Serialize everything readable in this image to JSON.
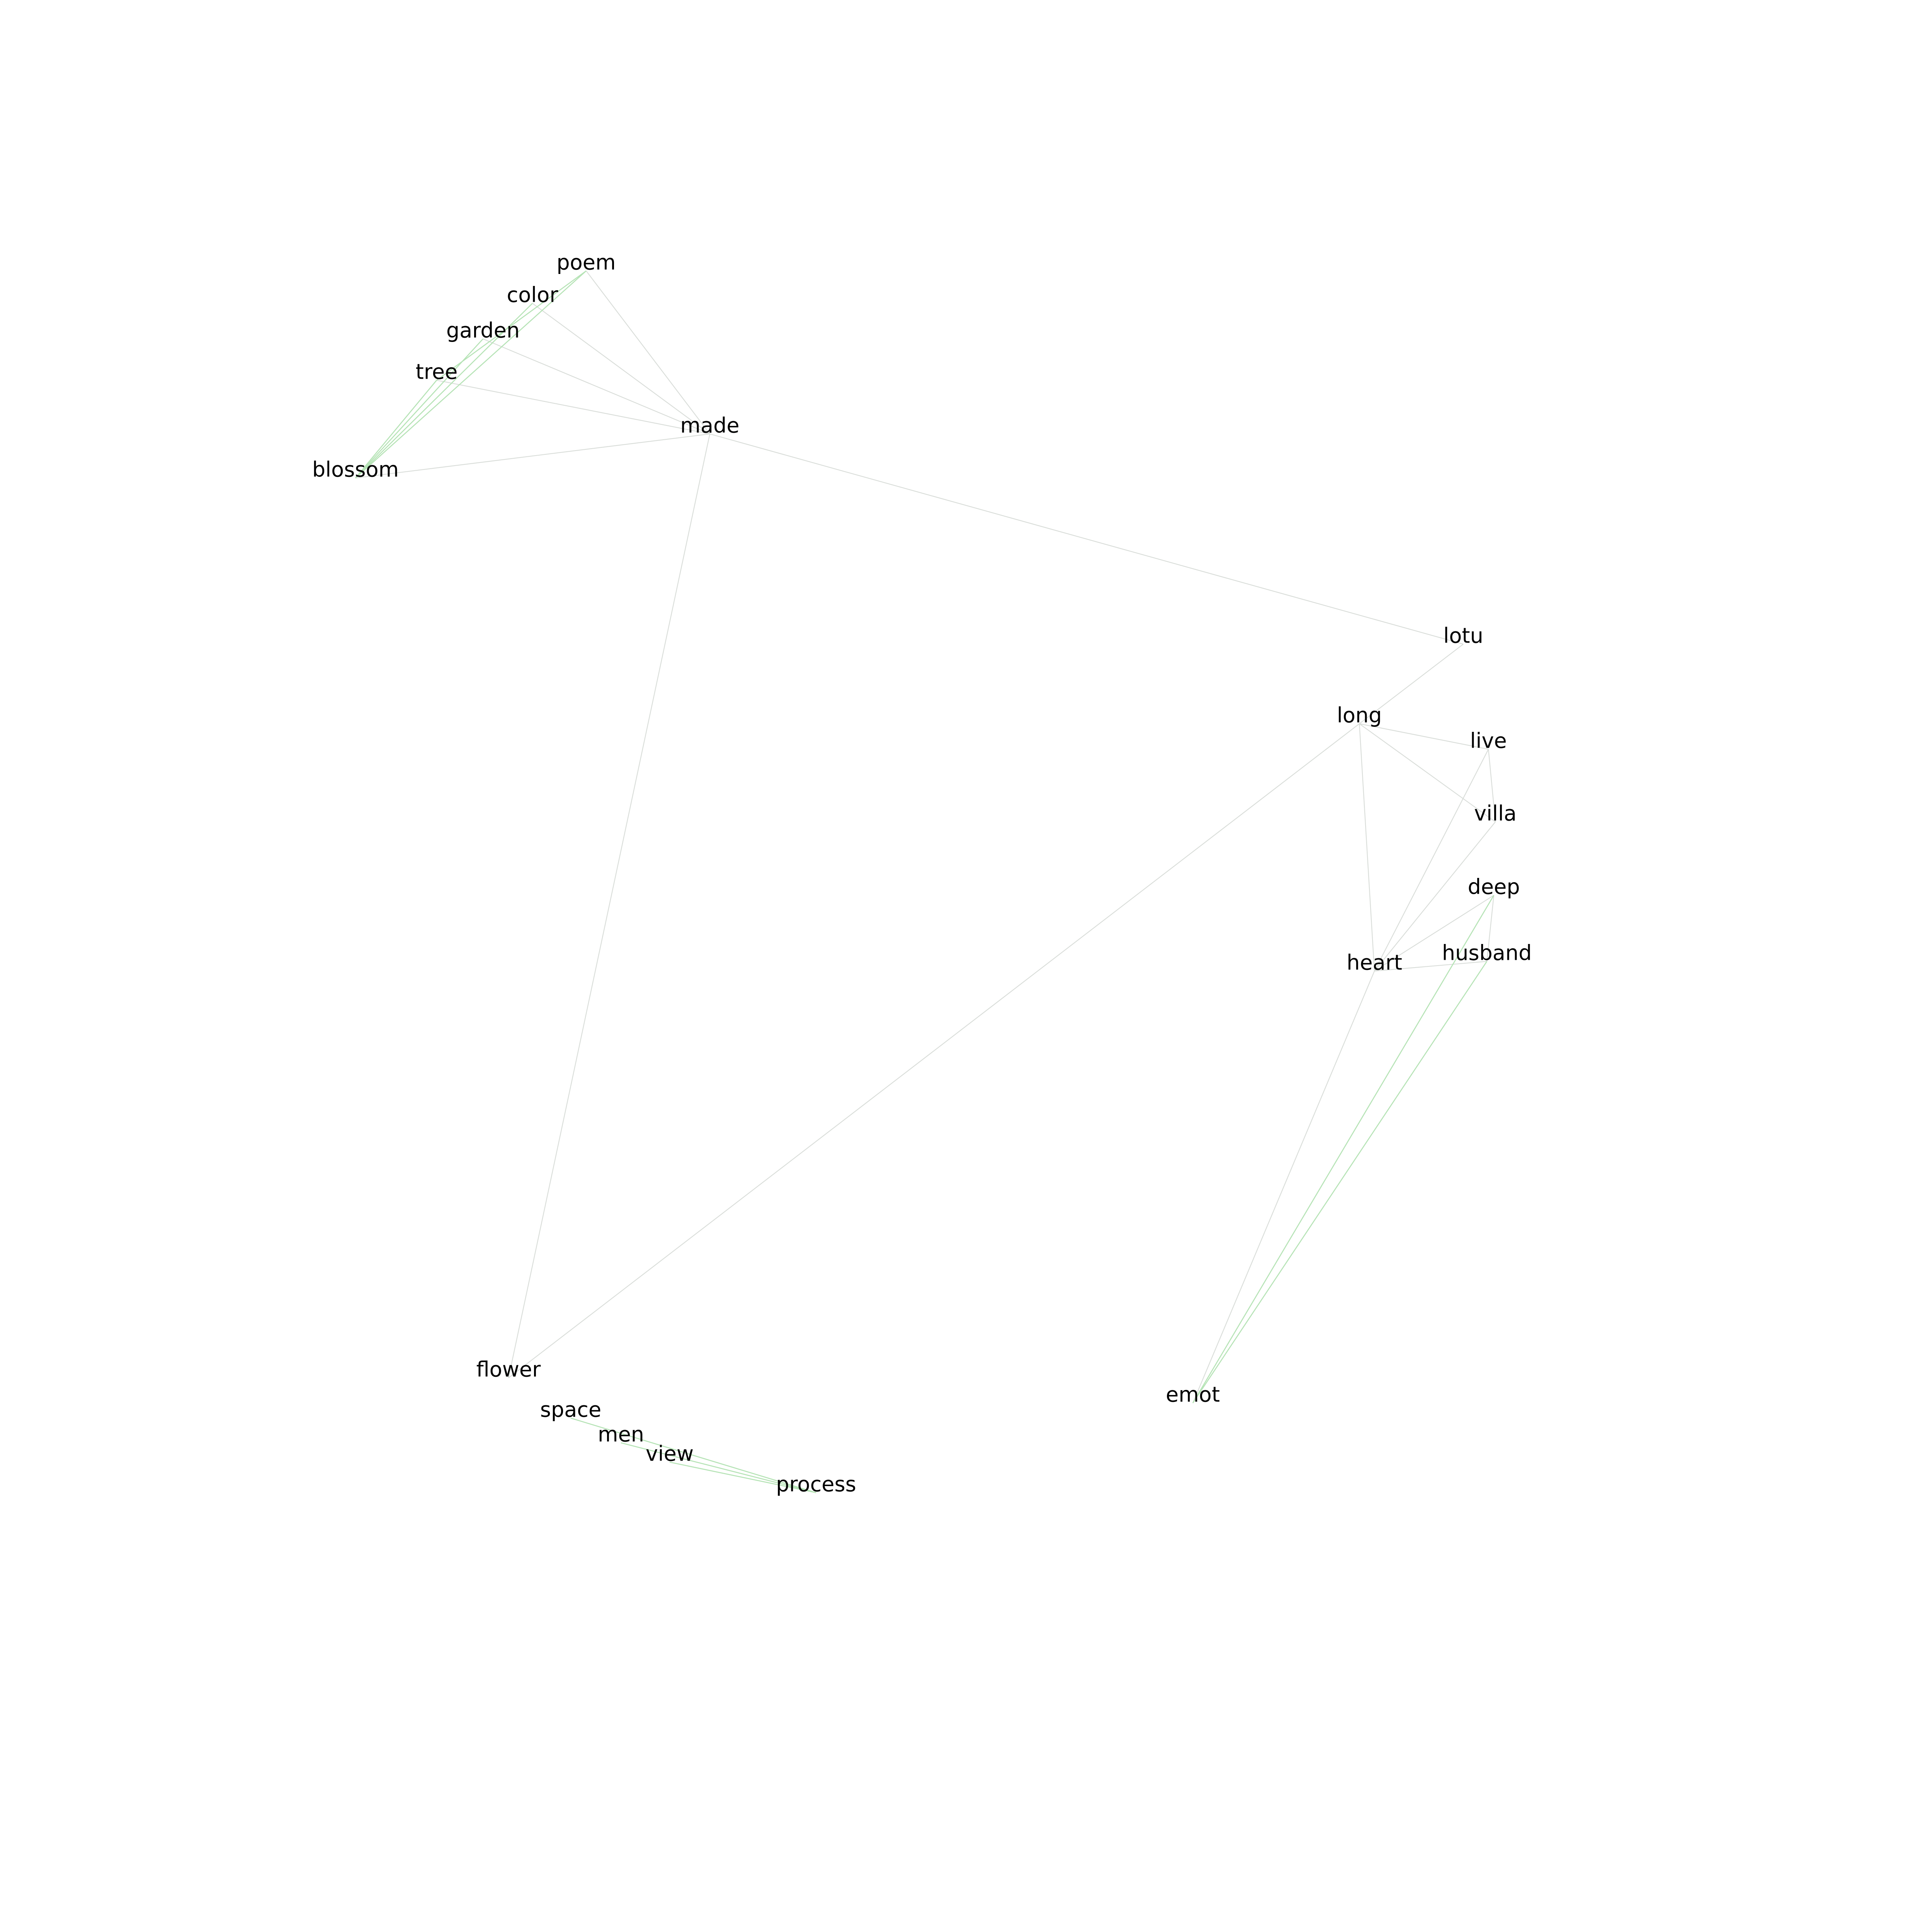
{
  "colors": {
    "background": "#ffffff",
    "label": "#000000",
    "edge_gray": "#d9ddd9",
    "edge_green": "#b5e3b5"
  },
  "graph": {
    "type": "word-co-occurrence-network",
    "nodes": [
      {
        "id": "poem",
        "label": "poem"
      },
      {
        "id": "color",
        "label": "color"
      },
      {
        "id": "garden",
        "label": "garden"
      },
      {
        "id": "tree",
        "label": "tree"
      },
      {
        "id": "made",
        "label": "made"
      },
      {
        "id": "blossom",
        "label": "blossom"
      },
      {
        "id": "lotu",
        "label": "lotu"
      },
      {
        "id": "long",
        "label": "long"
      },
      {
        "id": "live",
        "label": "live"
      },
      {
        "id": "villa",
        "label": "villa"
      },
      {
        "id": "deep",
        "label": "deep"
      },
      {
        "id": "heart",
        "label": "heart"
      },
      {
        "id": "husband",
        "label": "husband"
      },
      {
        "id": "flower",
        "label": "flower"
      },
      {
        "id": "space",
        "label": "space"
      },
      {
        "id": "men",
        "label": "men"
      },
      {
        "id": "view",
        "label": "view"
      },
      {
        "id": "process",
        "label": "process"
      },
      {
        "id": "emot",
        "label": "emot"
      }
    ],
    "edges": [
      {
        "source": "poem",
        "target": "made",
        "tone": "gray"
      },
      {
        "source": "color",
        "target": "made",
        "tone": "gray"
      },
      {
        "source": "garden",
        "target": "made",
        "tone": "gray"
      },
      {
        "source": "tree",
        "target": "made",
        "tone": "gray"
      },
      {
        "source": "blossom",
        "target": "made",
        "tone": "gray"
      },
      {
        "source": "poem",
        "target": "tree",
        "tone": "green"
      },
      {
        "source": "poem",
        "target": "blossom",
        "tone": "green"
      },
      {
        "source": "color",
        "target": "blossom",
        "tone": "green"
      },
      {
        "source": "garden",
        "target": "blossom",
        "tone": "green"
      },
      {
        "source": "tree",
        "target": "blossom",
        "tone": "green"
      },
      {
        "source": "made",
        "target": "lotu",
        "tone": "gray"
      },
      {
        "source": "made",
        "target": "flower",
        "tone": "gray"
      },
      {
        "source": "lotu",
        "target": "long",
        "tone": "gray"
      },
      {
        "source": "long",
        "target": "live",
        "tone": "gray"
      },
      {
        "source": "long",
        "target": "villa",
        "tone": "gray"
      },
      {
        "source": "long",
        "target": "heart",
        "tone": "gray"
      },
      {
        "source": "long",
        "target": "flower",
        "tone": "gray"
      },
      {
        "source": "live",
        "target": "villa",
        "tone": "gray"
      },
      {
        "source": "live",
        "target": "heart",
        "tone": "gray"
      },
      {
        "source": "villa",
        "target": "heart",
        "tone": "gray"
      },
      {
        "source": "deep",
        "target": "heart",
        "tone": "gray"
      },
      {
        "source": "heart",
        "target": "husband",
        "tone": "gray"
      },
      {
        "source": "deep",
        "target": "husband",
        "tone": "gray"
      },
      {
        "source": "heart",
        "target": "emot",
        "tone": "gray"
      },
      {
        "source": "deep",
        "target": "emot",
        "tone": "green"
      },
      {
        "source": "husband",
        "target": "emot",
        "tone": "green"
      },
      {
        "source": "space",
        "target": "process",
        "tone": "green"
      },
      {
        "source": "men",
        "target": "process",
        "tone": "green"
      },
      {
        "source": "view",
        "target": "process",
        "tone": "green"
      }
    ]
  }
}
